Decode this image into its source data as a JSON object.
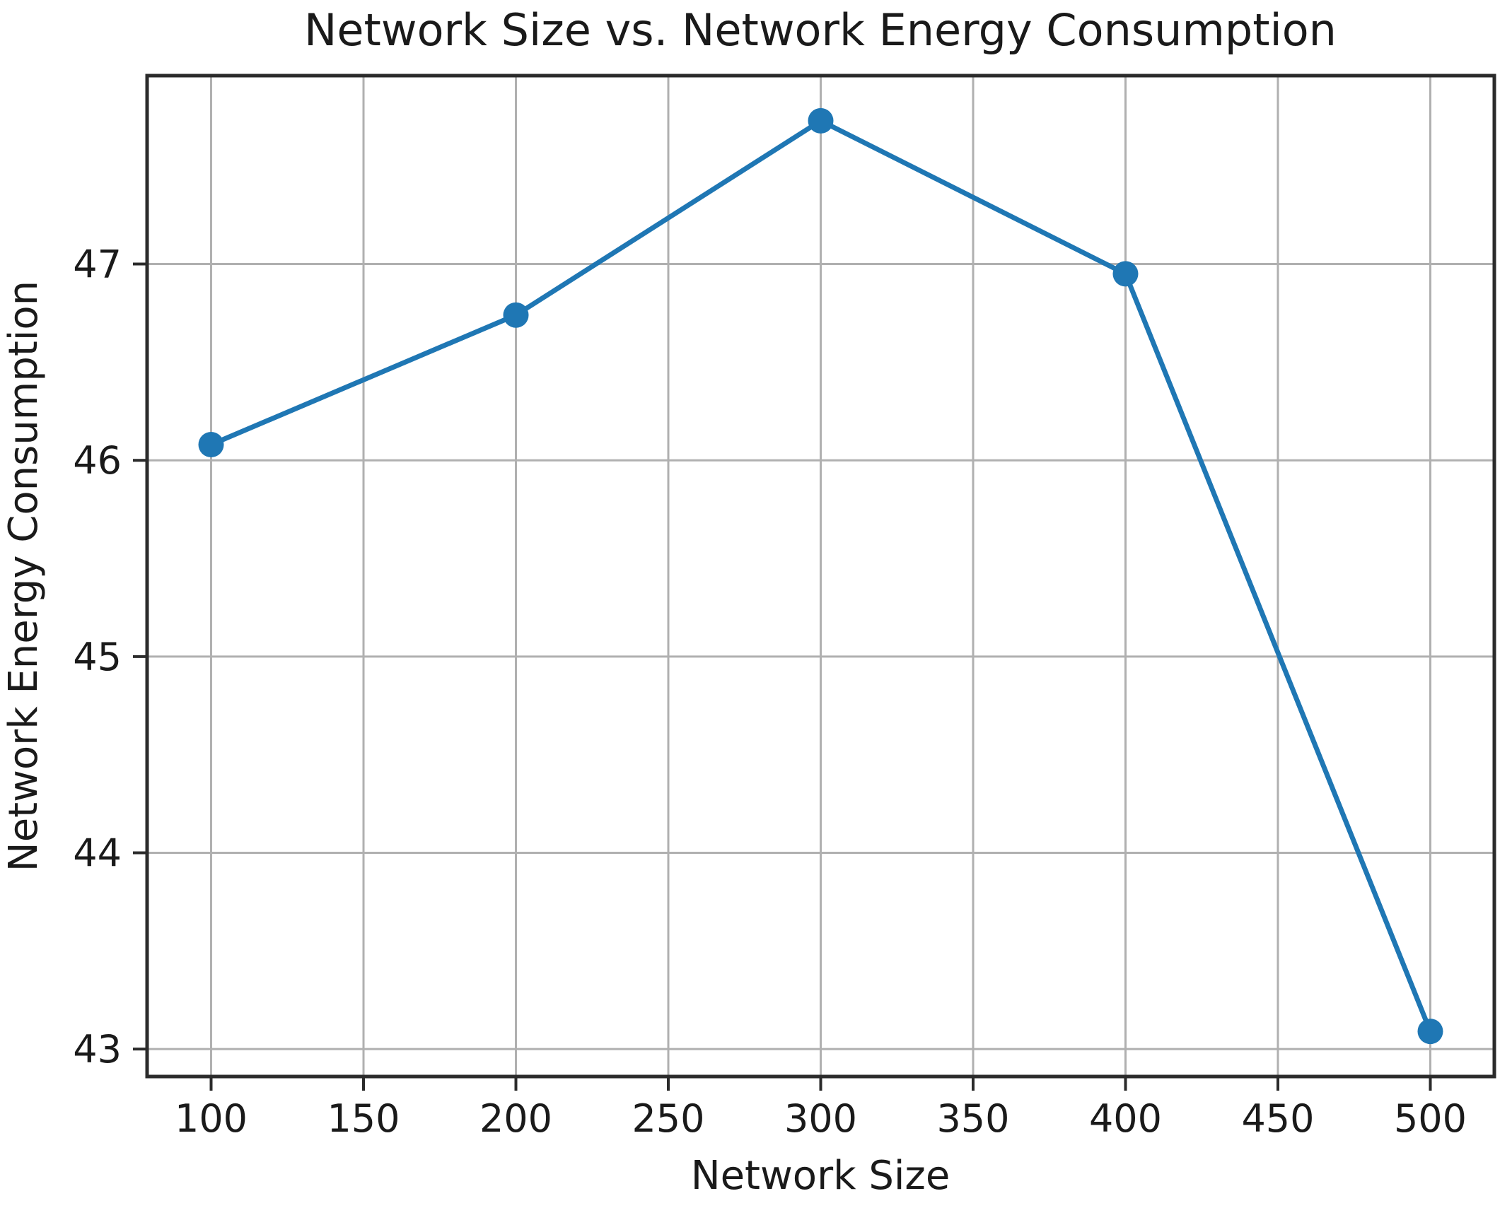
{
  "figure": {
    "title": "Network Size vs. Network Energy Consumption",
    "xlabel": "Network Size",
    "ylabel": "Network Energy Consumption"
  },
  "chart_data": {
    "type": "line",
    "title": "Network Size vs. Network Energy Consumption",
    "xlabel": "Network Size",
    "ylabel": "Network Energy Consumption",
    "x": [
      100,
      200,
      300,
      400,
      500
    ],
    "y": [
      46.08,
      46.74,
      47.73,
      46.95,
      43.09
    ],
    "xticks": [
      100,
      150,
      200,
      250,
      300,
      350,
      400,
      450,
      500
    ],
    "yticks": [
      43,
      44,
      45,
      46,
      47
    ],
    "xlim": [
      79,
      521
    ],
    "ylim": [
      42.86,
      47.96
    ],
    "grid": true,
    "legend": false,
    "marker": "circle",
    "colors": {
      "line": "#1f77b4",
      "marker": "#1f77b4",
      "grid": "#b0b0b0",
      "spine": "#2b2b2b",
      "text": "#1a1a1a",
      "background": "#ffffff"
    }
  }
}
